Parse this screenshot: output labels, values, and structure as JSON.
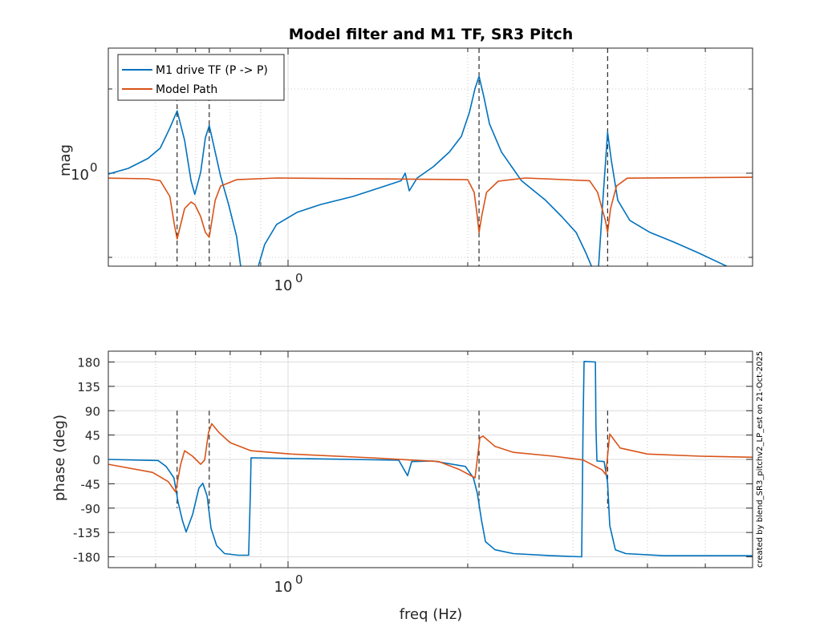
{
  "chart_data": [
    {
      "type": "line",
      "title": "Model filter and M1 TF, SR3 Pitch",
      "xlabel": "",
      "ylabel": "mag",
      "xscale": "log",
      "yscale": "log",
      "xlim": [
        0.5,
        6.0
      ],
      "ylim": [
        0.465,
        2.8
      ],
      "xticks": [
        {
          "value": 1,
          "label": "10",
          "exp": "0"
        }
      ],
      "yticks": [
        {
          "value": 1,
          "label": "10",
          "exp": "0"
        }
      ],
      "x_minor_grid": [
        0.6,
        0.7,
        0.8,
        0.9,
        2,
        3,
        4,
        5
      ],
      "y_minor_grid": [
        0.5,
        2
      ],
      "grid": true,
      "legend": {
        "placement": "top-left",
        "entries": [
          "M1 drive TF (P -> P)",
          "Model Path"
        ]
      },
      "vertical_markers": [
        0.652,
        0.738,
        2.089,
        3.43
      ],
      "series": [
        {
          "name": "M1 drive TF (P -> P)",
          "color": "#0072BD",
          "x": [
            0.5,
            0.54,
            0.583,
            0.611,
            0.634,
            0.652,
            0.671,
            0.688,
            0.698,
            0.714,
            0.727,
            0.738,
            0.755,
            0.771,
            0.795,
            0.82,
            0.833,
            0.859,
            0.892,
            0.914,
            0.957,
            1.035,
            1.135,
            1.285,
            1.454,
            1.547,
            1.571,
            1.596,
            1.646,
            1.751,
            1.863,
            1.951,
            2.013,
            2.057,
            2.089,
            2.128,
            2.175,
            2.278,
            2.461,
            2.7,
            2.873,
            3.038,
            3.153,
            3.222,
            3.262,
            3.313,
            3.375,
            3.43,
            3.48,
            3.568,
            3.737,
            4.04,
            4.43,
            4.86,
            5.42,
            6.0
          ],
          "y": [
            0.993,
            1.04,
            1.13,
            1.23,
            1.45,
            1.67,
            1.31,
            0.94,
            0.84,
            1.007,
            1.34,
            1.48,
            1.19,
            0.974,
            0.773,
            0.594,
            0.466,
            0.3,
            0.466,
            0.556,
            0.656,
            0.724,
            0.773,
            0.826,
            0.9,
            0.94,
            1.0,
            0.865,
            0.961,
            1.054,
            1.19,
            1.354,
            1.65,
            2.01,
            2.22,
            1.88,
            1.5,
            1.19,
            0.94,
            0.8,
            0.7,
            0.614,
            0.52,
            0.466,
            0.3,
            0.466,
            0.854,
            1.4,
            1.11,
            0.8,
            0.678,
            0.614,
            0.567,
            0.52,
            0.466,
            0.43
          ]
        },
        {
          "name": "Model Path",
          "color": "#D95319",
          "x": [
            0.5,
            0.583,
            0.611,
            0.634,
            0.645,
            0.652,
            0.671,
            0.688,
            0.698,
            0.714,
            0.727,
            0.738,
            0.755,
            0.771,
            0.82,
            0.957,
            2.0,
            2.05,
            2.075,
            2.089,
            2.11,
            2.15,
            2.25,
            2.5,
            3.2,
            3.3,
            3.4,
            3.43,
            3.47,
            3.55,
            3.7,
            6.0
          ],
          "y": [
            0.96,
            0.955,
            0.94,
            0.826,
            0.655,
            0.582,
            0.748,
            0.789,
            0.773,
            0.7,
            0.614,
            0.59,
            0.8,
            0.9,
            0.948,
            0.961,
            0.948,
            0.854,
            0.7,
            0.614,
            0.7,
            0.854,
            0.936,
            0.961,
            0.94,
            0.854,
            0.678,
            0.614,
            0.748,
            0.9,
            0.96,
            0.967
          ]
        }
      ]
    },
    {
      "type": "line",
      "title": "",
      "xlabel": "freq (Hz)",
      "ylabel": "phase (deg)",
      "xscale": "log",
      "yscale": "linear",
      "xlim": [
        0.5,
        6.0
      ],
      "ylim": [
        -200,
        200
      ],
      "xticks": [
        {
          "value": 1,
          "label": "10",
          "exp": "0"
        }
      ],
      "yticks": [
        {
          "value": 180,
          "label": "180"
        },
        {
          "value": 135,
          "label": "135"
        },
        {
          "value": 90,
          "label": "90"
        },
        {
          "value": 45,
          "label": "45"
        },
        {
          "value": 0,
          "label": "0"
        },
        {
          "value": -45,
          "label": "-45"
        },
        {
          "value": -90,
          "label": "-90"
        },
        {
          "value": -135,
          "label": "-135"
        },
        {
          "value": -180,
          "label": "-180"
        }
      ],
      "x_minor_grid": [
        0.6,
        0.7,
        0.8,
        0.9,
        2,
        3,
        4,
        5
      ],
      "grid": true,
      "vertical_markers": [
        0.652,
        0.738,
        2.089,
        3.43
      ],
      "marker_range": [
        -90,
        90
      ],
      "annotation": "created by blend_SR3_pitchv2_LP_est on 21-Oct-2025",
      "series": [
        {
          "name": "M1 drive TF (P -> P)",
          "color": "#0072BD",
          "x": [
            0.5,
            0.606,
            0.625,
            0.644,
            0.654,
            0.665,
            0.675,
            0.692,
            0.709,
            0.72,
            0.732,
            0.743,
            0.759,
            0.783,
            0.825,
            0.859,
            0.865,
            0.867,
            1.533,
            1.586,
            1.611,
            1.751,
            1.982,
            2.044,
            2.076,
            2.109,
            2.142,
            2.222,
            2.386,
            2.76,
            3.104,
            3.12,
            3.133,
            3.272,
            3.28,
            3.292,
            3.385,
            3.43,
            3.459,
            3.535,
            3.681,
            4.256,
            6.0
          ],
          "y": [
            0,
            -2,
            -13,
            -34,
            -78,
            -112,
            -134,
            -102,
            -53,
            -44,
            -68,
            -127,
            -159,
            -174,
            -177,
            -177,
            -60,
            3,
            -1.5,
            -30,
            -4,
            -3,
            -13,
            -34,
            -63,
            -112,
            -152,
            -167,
            -174,
            -178,
            -180,
            60,
            181,
            180,
            60,
            -3,
            -4,
            -43,
            -122,
            -167,
            -174,
            -178,
            -178
          ]
        },
        {
          "name": "Model Path",
          "color": "#D95319",
          "x": [
            0.5,
            0.593,
            0.63,
            0.648,
            0.661,
            0.671,
            0.692,
            0.714,
            0.725,
            0.736,
            0.745,
            0.766,
            0.8,
            0.867,
            1.012,
            1.38,
            1.789,
            1.939,
            2.057,
            2.096,
            2.122,
            2.222,
            2.386,
            2.786,
            3.12,
            3.354,
            3.406,
            3.459,
            3.601,
            4.0,
            4.91,
            6.0
          ],
          "y": [
            -9,
            -24,
            -41,
            -60,
            -9,
            16,
            6,
            -9,
            -1,
            50,
            66,
            50,
            31,
            16,
            10,
            3,
            -4,
            -19,
            -34,
            40,
            43,
            24,
            13,
            6,
            -1,
            -19,
            -28,
            47,
            21,
            10,
            6,
            4
          ]
        }
      ]
    }
  ]
}
